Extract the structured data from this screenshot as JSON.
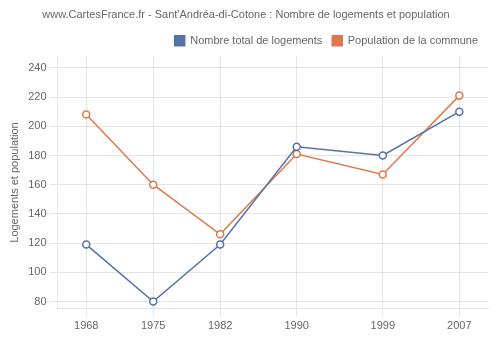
{
  "chart_data": {
    "type": "line",
    "title": "www.CartesFrance.fr - Sant'Andréa-di-Cotone : Nombre de logements et population",
    "ylabel": "Logements et population",
    "x": [
      1968,
      1975,
      1982,
      1990,
      1999,
      2007
    ],
    "series": [
      {
        "name": "Nombre total de logements",
        "color": "#5572a8",
        "marker": "circle",
        "values": [
          119,
          80,
          119,
          186,
          180,
          210
        ]
      },
      {
        "name": "Population de la commune",
        "color": "#e0784a",
        "marker": "circle",
        "values": [
          208,
          160,
          126,
          181,
          167,
          221
        ]
      }
    ],
    "xlim": [
      1965,
      2010
    ],
    "xticks": [
      1968,
      1975,
      1982,
      1990,
      1999,
      2007
    ],
    "ylim": [
      75,
      248
    ],
    "yticks": [
      80,
      100,
      120,
      140,
      160,
      180,
      200,
      220,
      240
    ],
    "grid": true,
    "legend": "upper right"
  }
}
